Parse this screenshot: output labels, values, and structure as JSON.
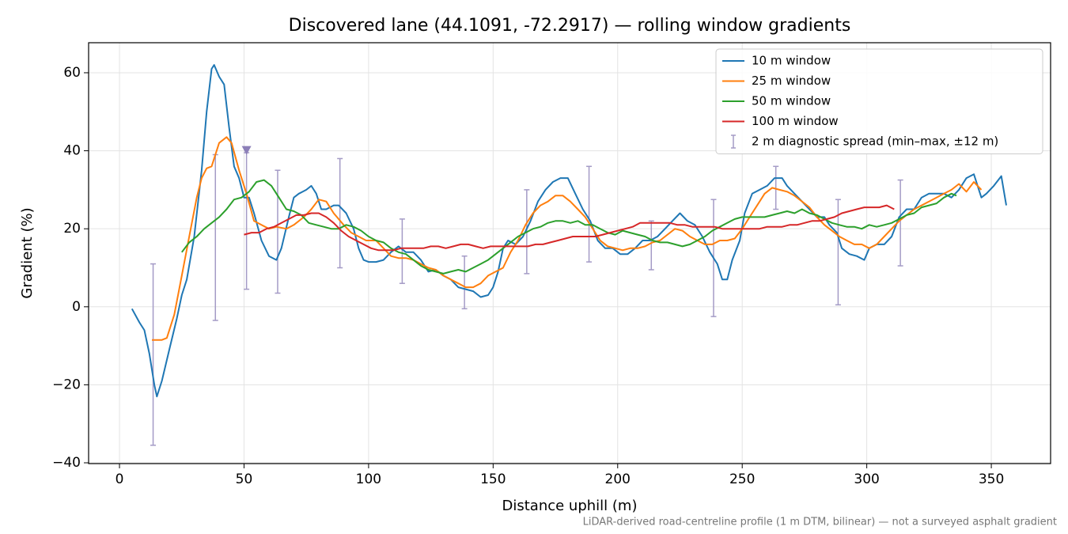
{
  "chart_data": {
    "type": "line",
    "title": "Discovered lane (44.1091, -72.2917) — rolling window gradients",
    "xlabel": "Distance uphill (m)",
    "ylabel": "Gradient (%)",
    "footnote": "LiDAR-derived road-centreline profile (1 m DTM, bilinear) — not a surveyed asphalt gradient",
    "xlim": [
      -12.4,
      373.8
    ],
    "ylim": [
      -40.2,
      67.7
    ],
    "xticks": [
      0,
      50,
      100,
      150,
      200,
      250,
      300,
      350
    ],
    "yticks": [
      {
        "value": -40,
        "label": "−40"
      },
      {
        "value": -20,
        "label": "−20"
      },
      0,
      20,
      40,
      60
    ],
    "grid": true,
    "legend": "upper right",
    "series": [
      {
        "name": "10 m window",
        "color": "#1f77b4",
        "x": [
          5,
          8,
          10,
          12,
          14,
          15,
          17,
          20,
          23,
          25,
          27,
          30,
          33,
          35,
          37,
          38,
          40,
          42,
          44,
          46,
          48,
          50,
          52,
          54,
          57,
          60,
          63,
          65,
          68,
          70,
          72,
          75,
          77,
          79,
          81,
          83,
          86,
          88,
          91,
          94,
          96,
          98,
          100,
          103,
          106,
          109,
          112,
          115,
          118,
          121,
          124,
          127,
          130,
          133,
          136,
          139,
          142,
          145,
          148,
          150,
          152,
          154,
          156,
          159,
          162,
          165,
          168,
          171,
          174,
          177,
          180,
          183,
          186,
          189,
          192,
          195,
          198,
          201,
          204,
          207,
          210,
          213,
          216,
          219,
          222,
          225,
          228,
          231,
          234,
          237,
          240,
          242,
          244,
          246,
          249,
          251,
          254,
          257,
          260,
          263,
          266,
          268,
          271,
          274,
          277,
          280,
          283,
          285,
          288,
          290,
          293,
          296,
          299,
          301,
          304,
          307,
          310,
          313,
          316,
          319,
          322,
          325,
          328,
          331,
          334,
          337,
          340,
          343,
          346,
          348,
          351,
          354,
          356
        ],
        "values": [
          -0.5,
          -4,
          -6,
          -12,
          -20,
          -23,
          -19,
          -11,
          -3,
          3,
          7,
          18,
          35,
          50,
          61,
          62,
          59,
          57,
          46,
          36,
          33,
          28,
          28,
          24,
          17,
          13,
          12,
          15,
          23,
          28,
          29,
          30,
          31,
          29,
          25,
          25,
          26,
          26,
          24,
          20,
          15,
          12,
          11.5,
          11.5,
          12,
          14,
          15.5,
          14,
          14,
          12,
          9,
          9.5,
          8,
          7,
          5,
          4.5,
          4,
          2.5,
          3,
          5,
          9,
          15,
          17,
          16,
          18,
          22,
          27,
          30,
          32,
          33,
          33,
          29,
          25,
          22,
          17,
          15,
          15,
          13.5,
          13.5,
          15,
          17,
          17,
          18,
          20,
          22,
          24,
          22,
          21,
          18,
          14,
          11,
          7,
          7,
          12,
          17,
          24,
          29,
          30,
          31,
          33,
          33,
          31,
          29,
          27,
          25,
          23,
          23,
          21,
          19,
          15,
          13.5,
          13,
          12,
          15,
          16,
          16,
          18,
          23,
          25,
          25,
          28,
          29,
          29,
          29,
          28,
          30,
          33,
          34,
          28,
          29,
          31,
          33.5,
          26
        ]
      },
      {
        "name": "25 m window",
        "color": "#ff7f0e",
        "x": [
          13,
          17,
          19,
          22,
          25,
          28,
          31,
          33,
          35,
          37,
          40,
          43,
          45,
          48,
          51,
          54,
          57,
          60,
          63,
          67,
          70,
          74,
          77,
          80,
          83,
          86,
          90,
          93,
          96,
          99,
          103,
          106,
          109,
          112,
          115,
          118,
          121,
          124,
          127,
          130,
          133,
          136,
          139,
          142,
          145,
          148,
          151,
          154,
          157,
          160,
          163,
          166,
          169,
          172,
          175,
          178,
          181,
          184,
          187,
          190,
          193,
          196,
          199,
          202,
          205,
          208,
          211,
          214,
          217,
          220,
          223,
          226,
          229,
          232,
          235,
          238,
          241,
          244,
          247,
          250,
          253,
          256,
          259,
          262,
          265,
          268,
          271,
          274,
          277,
          280,
          283,
          286,
          289,
          292,
          295,
          298,
          301,
          304,
          307,
          310,
          313,
          316,
          319,
          322,
          325,
          328,
          331,
          334,
          337,
          340,
          343,
          346
        ],
        "values": [
          -8.5,
          -8.5,
          -8,
          -2,
          8,
          18,
          28,
          33,
          35.5,
          36,
          42,
          43.5,
          42,
          35,
          29,
          22,
          21,
          20,
          20.5,
          20,
          21,
          23,
          25,
          27.5,
          27,
          24,
          21,
          19,
          18,
          17,
          17,
          15,
          13,
          12.5,
          12.5,
          12,
          11,
          10,
          9.5,
          8,
          7,
          6,
          5,
          5,
          6,
          8,
          9,
          10,
          14,
          17,
          21,
          24,
          26,
          27,
          28.5,
          28.5,
          27,
          25,
          23,
          20,
          17,
          15.5,
          15,
          14.5,
          15,
          15,
          15.5,
          16.5,
          17,
          18.5,
          20,
          19.5,
          18,
          17,
          16,
          16,
          17,
          17,
          17.5,
          20,
          23,
          26,
          29,
          30.5,
          30,
          29.5,
          28.5,
          27,
          25.5,
          23,
          21,
          19.5,
          18,
          17,
          16,
          16,
          15,
          16,
          18,
          20,
          22,
          23.5,
          25,
          26,
          27,
          28,
          29,
          30,
          31.5,
          29.5,
          32,
          30
        ]
      },
      {
        "name": "50 m window",
        "color": "#2ca02c",
        "x": [
          25,
          28,
          31,
          34,
          37,
          40,
          43,
          46,
          49,
          52,
          55,
          58,
          61,
          64,
          67,
          70,
          73,
          76,
          79,
          82,
          85,
          88,
          91,
          94,
          97,
          100,
          103,
          106,
          109,
          112,
          115,
          118,
          121,
          124,
          127,
          130,
          133,
          136,
          139,
          142,
          145,
          148,
          151,
          154,
          157,
          160,
          163,
          166,
          169,
          172,
          175,
          178,
          181,
          184,
          187,
          190,
          193,
          196,
          199,
          202,
          205,
          208,
          211,
          214,
          217,
          220,
          223,
          226,
          229,
          232,
          235,
          238,
          241,
          244,
          247,
          250,
          253,
          256,
          259,
          262,
          265,
          268,
          271,
          274,
          277,
          280,
          283,
          286,
          289,
          292,
          295,
          298,
          301,
          304,
          307,
          310,
          313,
          316,
          319,
          322,
          325,
          328,
          331,
          334,
          336
        ],
        "values": [
          14,
          16.5,
          18,
          20,
          21.5,
          23,
          25,
          27.5,
          28,
          29.5,
          32,
          32.5,
          31,
          28,
          25,
          24.5,
          23.5,
          21.5,
          21,
          20.5,
          20,
          20,
          21,
          20.5,
          19.5,
          18,
          17,
          16.5,
          15,
          14,
          13.5,
          12,
          10.5,
          9.5,
          9,
          8.5,
          9,
          9.5,
          9,
          10,
          11,
          12,
          13.5,
          15,
          16.5,
          18,
          19,
          20,
          20.5,
          21.5,
          22,
          22,
          21.5,
          22,
          21,
          21,
          20,
          19,
          18.5,
          19.5,
          19,
          18.5,
          18,
          17,
          16.5,
          16.5,
          16,
          15.5,
          16,
          17,
          18,
          19.5,
          20.5,
          21.5,
          22.5,
          23,
          23,
          23,
          23,
          23.5,
          24,
          24.5,
          24,
          25,
          24,
          23.5,
          22.5,
          21.5,
          21,
          20.5,
          20.5,
          20,
          21,
          20.5,
          21,
          21.5,
          22.5,
          23.5,
          24,
          25.5,
          26,
          26.5,
          28,
          29,
          28.5
        ]
      },
      {
        "name": "100 m window",
        "color": "#d62728",
        "x": [
          50,
          53,
          56,
          59,
          62,
          65,
          68,
          71,
          74,
          77,
          80,
          83,
          86,
          89,
          92,
          95,
          98,
          101,
          104,
          107,
          110,
          113,
          116,
          119,
          122,
          125,
          128,
          131,
          134,
          137,
          140,
          143,
          146,
          149,
          152,
          155,
          158,
          161,
          164,
          167,
          170,
          173,
          176,
          179,
          182,
          185,
          188,
          191,
          194,
          197,
          200,
          203,
          206,
          209,
          212,
          215,
          218,
          221,
          224,
          227,
          230,
          233,
          236,
          239,
          242,
          245,
          248,
          251,
          254,
          257,
          260,
          263,
          266,
          269,
          272,
          275,
          278,
          281,
          284,
          287,
          290,
          293,
          296,
          299,
          302,
          305,
          308,
          311
        ],
        "values": [
          18.5,
          19,
          19,
          20,
          20.5,
          21.5,
          22.5,
          23.5,
          23.5,
          24,
          24,
          23,
          21.5,
          19.5,
          18,
          17,
          16,
          15,
          14.5,
          14.5,
          14.5,
          15,
          15,
          15,
          15,
          15.5,
          15.5,
          15,
          15.5,
          16,
          16,
          15.5,
          15,
          15.5,
          15.5,
          15.5,
          15.5,
          15.5,
          15.5,
          16,
          16,
          16.5,
          17,
          17.5,
          18,
          18,
          18,
          18,
          18.5,
          19,
          19.5,
          20,
          20.5,
          21.5,
          21.5,
          21.5,
          21.5,
          21.5,
          21,
          21,
          20.5,
          20.5,
          20.5,
          20.5,
          20,
          20,
          20,
          20,
          20,
          20,
          20.5,
          20.5,
          20.5,
          21,
          21,
          21.5,
          22,
          22,
          22.5,
          23,
          24,
          24.5,
          25,
          25.5,
          25.5,
          25.5,
          26,
          25
        ]
      }
    ],
    "errorbars": {
      "name": "2 m diagnostic spread (min–max, ±12 m)",
      "color": "#a49bc6",
      "x": [
        13.5,
        38.5,
        51,
        63.5,
        88.5,
        113.5,
        138.5,
        163.5,
        188.5,
        213.5,
        238.5,
        263.5,
        288.5,
        313.5
      ],
      "low": [
        -35.5,
        -3.5,
        4.5,
        3.5,
        10,
        6,
        -0.5,
        8.5,
        11.5,
        9.5,
        -2.5,
        25,
        0.5,
        10.5
      ],
      "high": [
        11,
        39,
        39.5,
        35,
        38,
        22.5,
        13,
        30,
        36,
        22,
        27.5,
        36,
        27.5,
        32.5
      ]
    },
    "clip_markers": {
      "color": "#8c7fb8",
      "x": [
        51
      ],
      "y": [
        40
      ]
    }
  }
}
